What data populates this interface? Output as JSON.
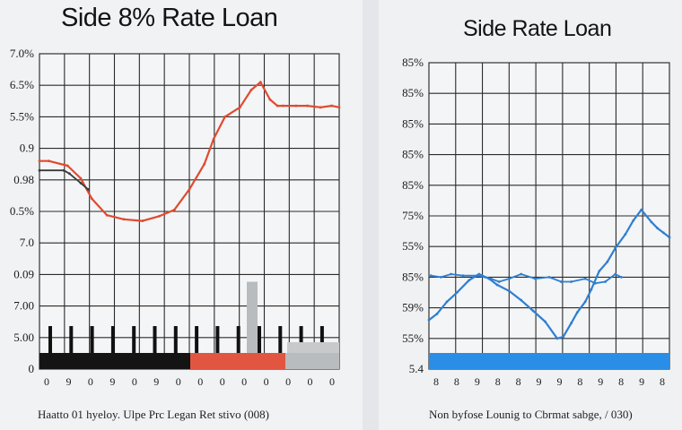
{
  "chart_data": [
    {
      "type": "line",
      "title": "Side 8% Rate Loan",
      "caption": "Haatto 01 hyeloy. Ulpe Prc Legan Ret stivo (008)",
      "y_tick_labels": [
        "7.0%",
        "6.5%",
        "5.5%",
        "0.9",
        "0.98",
        "0.5%",
        "7.0",
        "0.09",
        "7.00",
        "5.00",
        "0"
      ],
      "x_tick_labels": [
        "0",
        "9",
        "0",
        "9",
        "0",
        "9",
        "0",
        "0",
        "0",
        "0",
        "0",
        "0",
        "0",
        "0"
      ],
      "ylim": [
        0,
        10
      ],
      "series": [
        {
          "name": "rate",
          "color": "#e04a30",
          "x": [
            0,
            0.5,
            1.5,
            2.2,
            2.8,
            3.6,
            4.5,
            5.5,
            6.4,
            7.2,
            8.0,
            8.8,
            9.3,
            9.9,
            10.7,
            11.3,
            11.8,
            12.3,
            12.7,
            13.0,
            13.7,
            14.3,
            15.0,
            15.6,
            16.0
          ],
          "values": [
            6.6,
            6.6,
            6.45,
            6.05,
            5.4,
            4.88,
            4.75,
            4.7,
            4.85,
            5.05,
            5.7,
            6.5,
            7.3,
            8.0,
            8.3,
            8.85,
            9.1,
            8.55,
            8.35,
            8.35,
            8.35,
            8.35,
            8.3,
            8.35,
            8.3
          ]
        },
        {
          "name": "secondary",
          "color": "#3a3a3a",
          "x": [
            0,
            1.3,
            1.6,
            2.2,
            2.6
          ],
          "values": [
            6.3,
            6.3,
            6.2,
            5.9,
            5.7
          ]
        }
      ],
      "bars": {
        "black_markers": [
          1.0,
          1.0,
          1.0,
          1.0,
          1.0,
          1.0,
          1.0,
          1.0,
          1.0,
          1.0,
          1.0,
          1.0,
          1.0,
          1.0
        ],
        "gray_markers": [
          2.65,
          1.0
        ],
        "footer_segments": [
          {
            "label": "black",
            "color": "#141414"
          },
          {
            "label": "red",
            "color": "#e25641"
          },
          {
            "label": "gray",
            "color": "#b9bcbe"
          }
        ]
      }
    },
    {
      "type": "line",
      "title": "Side Rate Loan",
      "caption": "Non byfose Lounig to Cbrmat sabge, / 030)",
      "y_tick_labels": [
        "85%",
        "85%",
        "85%",
        "85%",
        "85%",
        "75%",
        "55%",
        "85%",
        "59%",
        "55%",
        "5.4"
      ],
      "x_tick_labels": [
        "8",
        "8",
        "9",
        "8",
        "8",
        "9",
        "9",
        "8",
        "9",
        "8",
        "9",
        "8"
      ],
      "ylim": [
        0,
        10
      ],
      "series": [
        {
          "name": "main",
          "color": "#2f7fd1",
          "x": [
            0,
            0.4,
            0.9,
            1.4,
            2.0,
            2.5,
            3.0,
            3.4,
            4.0,
            4.6,
            5.2,
            5.8,
            6.4,
            6.7,
            7.1,
            7.4,
            7.8,
            8.1,
            8.5,
            8.9,
            9.3,
            9.8,
            10.2,
            10.6,
            11.1,
            11.4,
            11.7,
            12.0
          ],
          "values": [
            1.6,
            1.8,
            2.2,
            2.5,
            2.9,
            3.1,
            2.95,
            2.75,
            2.55,
            2.25,
            1.9,
            1.55,
            1.0,
            1.05,
            1.5,
            1.85,
            2.2,
            2.6,
            3.2,
            3.5,
            3.95,
            4.4,
            4.85,
            5.2,
            4.8,
            4.6,
            4.45,
            4.3
          ]
        },
        {
          "name": "flat",
          "color": "#2f7fd1",
          "x": [
            0.1,
            0.6,
            1.1,
            1.7,
            2.4,
            2.8,
            3.1,
            3.5,
            4.0,
            4.6,
            5.3,
            6.0,
            6.6,
            7.1,
            7.8,
            8.3,
            8.8,
            9.3,
            9.6
          ],
          "values": [
            3.05,
            3.0,
            3.1,
            3.05,
            3.05,
            3.0,
            2.95,
            2.85,
            2.95,
            3.1,
            2.95,
            3.0,
            2.85,
            2.85,
            2.95,
            2.8,
            2.85,
            3.1,
            3.0
          ]
        }
      ],
      "baseline_color": "#2a8ee6"
    }
  ]
}
